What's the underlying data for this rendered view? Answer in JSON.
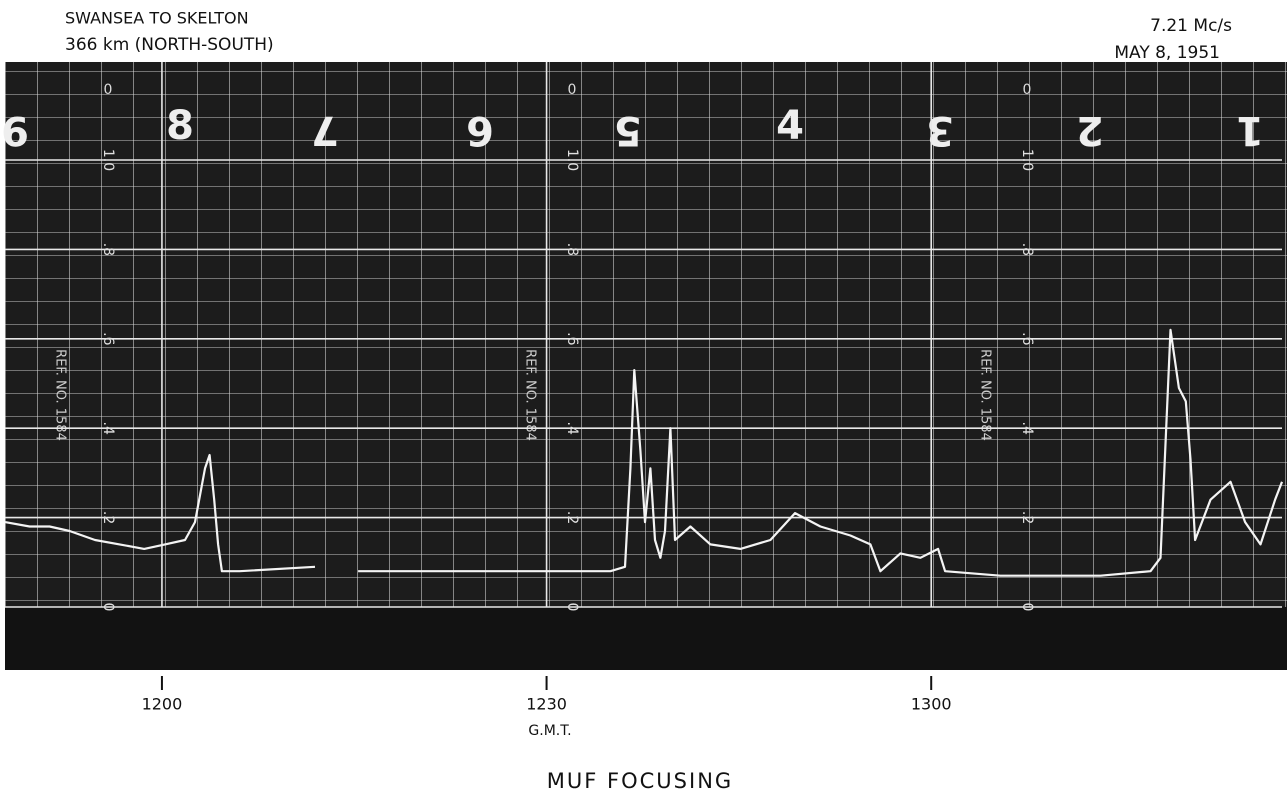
{
  "chart_data": {
    "type": "line",
    "header_left": [
      "SWANSEA TO SKELTON",
      "366 km (NORTH-SOUTH)"
    ],
    "header_right": [
      "7.21 Mc/s",
      "MAY 8, 1951"
    ],
    "title": "MUF FOCUSING",
    "xlabel": "G.M.T.",
    "paper_digits": [
      "9",
      "8",
      "7",
      "6",
      "5",
      "4",
      "3",
      "2",
      "1"
    ],
    "scale_tops": [
      "0",
      "0",
      "0"
    ],
    "ref_labels": [
      "REF. NO. 1584",
      "REF. NO. 1584",
      "REF. NO. 1584"
    ],
    "color": "#f4f4f4",
    "x": [
      11.796,
      11.828,
      11.854,
      11.88,
      11.913,
      11.945,
      11.977,
      12.004,
      12.03,
      12.043,
      12.056,
      12.062,
      12.068,
      12.073,
      12.078,
      12.101,
      12.199,
      12.227,
      12.255,
      12.336,
      12.388,
      12.466,
      12.583,
      12.602,
      12.609,
      12.614,
      12.622,
      12.628,
      12.635,
      12.641,
      12.648,
      12.654,
      12.661,
      12.667,
      12.687,
      12.713,
      12.752,
      12.791,
      12.823,
      12.856,
      12.895,
      12.921,
      12.934,
      12.96,
      12.986,
      13.009,
      13.018,
      13.09,
      13.22,
      13.285,
      13.298,
      13.311,
      13.322,
      13.331,
      13.337,
      13.343,
      13.363,
      13.389,
      13.408,
      13.428,
      13.447,
      13.456
    ],
    "values": [
      0.19,
      0.18,
      0.18,
      0.17,
      0.15,
      0.14,
      0.13,
      0.14,
      0.15,
      0.19,
      0.31,
      0.34,
      0.24,
      0.14,
      0.08,
      0.08,
      0.09,
      null,
      0.08,
      0.08,
      0.08,
      0.08,
      0.08,
      0.09,
      0.31,
      0.53,
      0.35,
      0.19,
      0.31,
      0.15,
      0.11,
      0.17,
      0.4,
      0.15,
      0.18,
      0.14,
      0.13,
      0.15,
      0.21,
      0.18,
      0.16,
      0.14,
      0.08,
      0.12,
      0.11,
      0.13,
      0.08,
      0.07,
      0.07,
      0.08,
      0.11,
      0.62,
      0.49,
      0.46,
      0.33,
      0.15,
      0.24,
      0.28,
      0.19,
      0.14,
      0.24,
      0.28
    ],
    "xlim": [
      11.796,
      13.456
    ],
    "xticks": [
      {
        "value": 12,
        "label": "1200"
      },
      {
        "value": 12.5,
        "label": "1230"
      },
      {
        "value": 13,
        "label": "1300"
      }
    ],
    "ylim": [
      0,
      1
    ],
    "yticks": [
      0,
      {
        "value": 0.2,
        "label": ".2"
      },
      {
        "value": 0.4,
        "label": ".4"
      },
      {
        "value": 0.6,
        "label": ".6"
      },
      {
        "value": 0.8,
        "label": ".8"
      },
      {
        "value": 1,
        "label": "1.0"
      }
    ]
  }
}
